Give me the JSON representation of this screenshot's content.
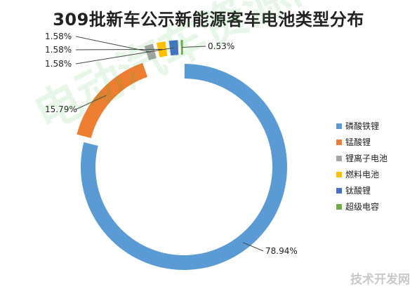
{
  "chart_data": {
    "type": "pie",
    "title": "309批新车公示新能源客车电池类型分布",
    "labels": [
      "磷酸铁锂",
      "锰酸锂",
      "锂离子电池",
      "燃料电池",
      "钛酸锂",
      "超级电容"
    ],
    "values": [
      78.94,
      15.79,
      1.58,
      1.58,
      1.58,
      0.53
    ],
    "value_labels": [
      "78.94%",
      "15.79%",
      "1.58%",
      "1.58%",
      "1.58%",
      "0.53%"
    ],
    "colors": [
      "#5b9bd5",
      "#ed7d31",
      "#a5a5a5",
      "#ffc000",
      "#4472c4",
      "#70ad47"
    ],
    "donut": true,
    "legend_position": "right"
  },
  "watermark": "电动汽车资源网",
  "corner_watermark": "技术开发网"
}
